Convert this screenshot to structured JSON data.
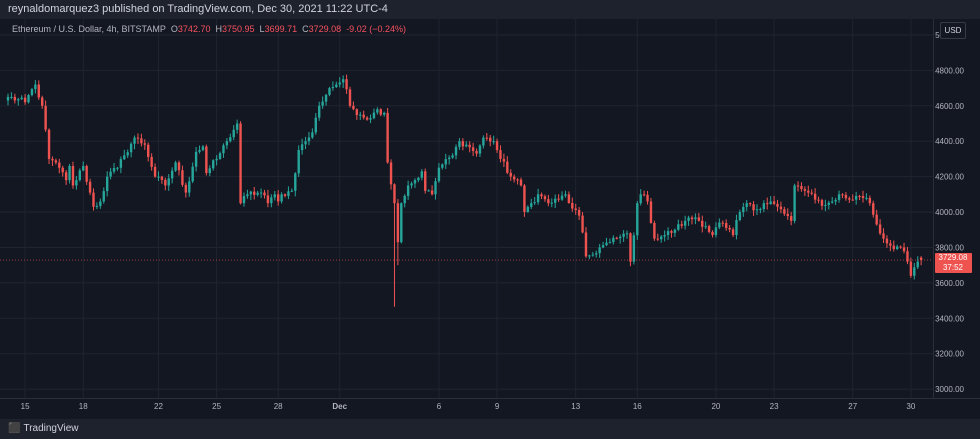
{
  "header": {
    "published": "reynaldomarquez3 published on TradingView.com, Dec 30, 2021 11:22 UTC-4"
  },
  "legend": {
    "symbol": "Ethereum / U.S. Dollar, 4h, BITSTAMP",
    "open_label": "O",
    "open": "3742.70",
    "high_label": "H",
    "high": "3750.95",
    "low_label": "L",
    "low": "3699.71",
    "close_label": "C",
    "close": "3729.08",
    "change": "-9.02 (−0.24%)"
  },
  "currency_button": "USD",
  "price_tag": {
    "price": "3729.08",
    "countdown": "37:52"
  },
  "footer": {
    "brand": "TradingView",
    "logo_icon": "tradingview-logo-icon"
  },
  "colors": {
    "up": "#26a69a",
    "down": "#ef5350",
    "background": "#131722",
    "grid": "#1f2430"
  },
  "chart_data": {
    "type": "candlestick",
    "y_ticks": [
      "3000.00",
      "3200.00",
      "3400.00",
      "3600.00",
      "3800.00",
      "4000.00",
      "4200.00",
      "4400.00",
      "4600.00",
      "4800.00",
      "5000.00"
    ],
    "ylim": [
      2950,
      5090
    ],
    "x_ticks": [
      {
        "label": "15",
        "i": 5
      },
      {
        "label": "18",
        "i": 22
      },
      {
        "label": "22",
        "i": 44
      },
      {
        "label": "25",
        "i": 61
      },
      {
        "label": "28",
        "i": 79
      },
      {
        "label": "Dec",
        "i": 97,
        "bold": true
      },
      {
        "label": "6",
        "i": 126
      },
      {
        "label": "9",
        "i": 143
      },
      {
        "label": "13",
        "i": 166
      },
      {
        "label": "16",
        "i": 184
      },
      {
        "label": "20",
        "i": 207
      },
      {
        "label": "23",
        "i": 224
      },
      {
        "label": "27",
        "i": 247
      },
      {
        "label": "30",
        "i": 264
      }
    ],
    "anchors": [
      [
        0,
        4650
      ],
      [
        5,
        4620
      ],
      [
        8,
        4720
      ],
      [
        10,
        4600
      ],
      [
        12,
        4300
      ],
      [
        15,
        4250
      ],
      [
        17,
        4180
      ],
      [
        18,
        4260
      ],
      [
        19,
        4150
      ],
      [
        22,
        4260
      ],
      [
        25,
        4030
      ],
      [
        27,
        4060
      ],
      [
        29,
        4200
      ],
      [
        32,
        4250
      ],
      [
        34,
        4320
      ],
      [
        37,
        4420
      ],
      [
        40,
        4380
      ],
      [
        43,
        4200
      ],
      [
        46,
        4150
      ],
      [
        49,
        4280
      ],
      [
        52,
        4110
      ],
      [
        55,
        4340
      ],
      [
        57,
        4370
      ],
      [
        58,
        4220
      ],
      [
        61,
        4300
      ],
      [
        64,
        4400
      ],
      [
        67,
        4500
      ],
      [
        68,
        4050
      ],
      [
        70,
        4100
      ],
      [
        74,
        4110
      ],
      [
        76,
        4050
      ],
      [
        78,
        4100
      ],
      [
        79,
        4060
      ],
      [
        80,
        4100
      ],
      [
        83,
        4120
      ],
      [
        85,
        4350
      ],
      [
        87,
        4400
      ],
      [
        89,
        4450
      ],
      [
        91,
        4600
      ],
      [
        94,
        4700
      ],
      [
        96,
        4720
      ],
      [
        98,
        4750
      ],
      [
        100,
        4600
      ],
      [
        103,
        4550
      ],
      [
        106,
        4530
      ],
      [
        108,
        4580
      ],
      [
        110,
        4560
      ],
      [
        111,
        4280
      ],
      [
        113,
        4050
      ],
      [
        114,
        3830
      ],
      [
        115,
        4050
      ],
      [
        117,
        4150
      ],
      [
        119,
        4180
      ],
      [
        121,
        4230
      ],
      [
        122,
        4120
      ],
      [
        124,
        4100
      ],
      [
        126,
        4250
      ],
      [
        130,
        4320
      ],
      [
        132,
        4400
      ],
      [
        134,
        4380
      ],
      [
        137,
        4330
      ],
      [
        139,
        4420
      ],
      [
        142,
        4400
      ],
      [
        144,
        4300
      ],
      [
        147,
        4200
      ],
      [
        150,
        4150
      ],
      [
        151,
        4000
      ],
      [
        153,
        4050
      ],
      [
        155,
        4100
      ],
      [
        158,
        4050
      ],
      [
        161,
        4070
      ],
      [
        163,
        4100
      ],
      [
        165,
        4020
      ],
      [
        167,
        3980
      ],
      [
        169,
        3750
      ],
      [
        171,
        3760
      ],
      [
        173,
        3800
      ],
      [
        176,
        3830
      ],
      [
        179,
        3860
      ],
      [
        181,
        3880
      ],
      [
        182,
        3720
      ],
      [
        184,
        4050
      ],
      [
        185,
        4100
      ],
      [
        187,
        4060
      ],
      [
        189,
        3850
      ],
      [
        192,
        3870
      ],
      [
        195,
        3900
      ],
      [
        198,
        3950
      ],
      [
        201,
        3970
      ],
      [
        204,
        3920
      ],
      [
        206,
        3870
      ],
      [
        208,
        3940
      ],
      [
        210,
        3910
      ],
      [
        212,
        3870
      ],
      [
        214,
        4000
      ],
      [
        216,
        4050
      ],
      [
        218,
        4010
      ],
      [
        221,
        4050
      ],
      [
        223,
        4060
      ],
      [
        225,
        4030
      ],
      [
        227,
        3990
      ],
      [
        229,
        3950
      ],
      [
        230,
        4150
      ],
      [
        233,
        4120
      ],
      [
        236,
        4070
      ],
      [
        239,
        4040
      ],
      [
        241,
        4060
      ],
      [
        243,
        4100
      ],
      [
        246,
        4070
      ],
      [
        249,
        4090
      ],
      [
        251,
        4080
      ],
      [
        252,
        4050
      ],
      [
        254,
        3930
      ],
      [
        256,
        3850
      ],
      [
        258,
        3810
      ],
      [
        261,
        3800
      ],
      [
        263,
        3720
      ],
      [
        264,
        3640
      ],
      [
        266,
        3720
      ],
      [
        267,
        3729.08
      ]
    ],
    "last": {
      "open": 3742.7,
      "high": 3750.95,
      "low": 3699.71,
      "close": 3729.08
    }
  }
}
